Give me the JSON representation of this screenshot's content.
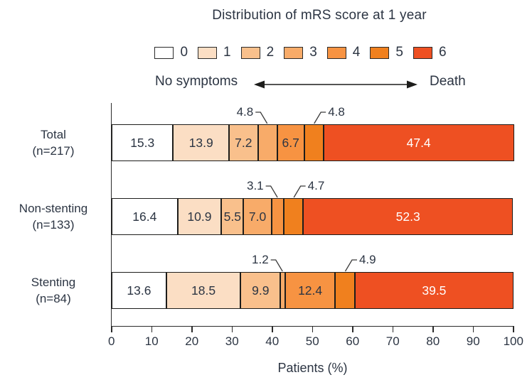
{
  "chart_data": {
    "type": "bar",
    "stacked": true,
    "orientation": "horizontal",
    "title": "Distribution of mRS score at 1 year",
    "xlabel": "Patients (%)",
    "xlim": [
      0,
      100
    ],
    "xticks": [
      0,
      10,
      20,
      30,
      40,
      50,
      60,
      70,
      80,
      90,
      100
    ],
    "grid": false,
    "legend_position": "top",
    "legend": [
      {
        "label": "0",
        "color": "#ffffff"
      },
      {
        "label": "1",
        "color": "#fbdec4"
      },
      {
        "label": "2",
        "color": "#f9c08c"
      },
      {
        "label": "3",
        "color": "#f8ab69"
      },
      {
        "label": "4",
        "color": "#f79342"
      },
      {
        "label": "5",
        "color": "#f0801e"
      },
      {
        "label": "6",
        "color": "#ee5022"
      }
    ],
    "scale_annotation": {
      "left": "No symptoms",
      "right": "Death"
    },
    "categories": [
      "Total (n=217)",
      "Non-stenting (n=133)",
      "Stenting (n=84)"
    ],
    "rows": [
      {
        "label": "Total",
        "sublabel": "(n=217)",
        "values": [
          15.3,
          13.9,
          7.2,
          4.8,
          6.7,
          4.8,
          47.4
        ],
        "value_labels": [
          "15.3",
          "13.9",
          "7.2",
          "4.8",
          "6.7",
          "4.8",
          "47.4"
        ],
        "callouts": [
          {
            "segment": 3,
            "value": "4.8",
            "side": "left"
          },
          {
            "segment": 5,
            "value": "4.8",
            "side": "right"
          }
        ]
      },
      {
        "label": "Non-stenting",
        "sublabel": "(n=133)",
        "values": [
          16.4,
          10.9,
          5.5,
          7.0,
          3.1,
          4.7,
          52.3
        ],
        "value_labels": [
          "16.4",
          "10.9",
          "5.5",
          "7.0",
          "3.1",
          "4.7",
          "52.3"
        ],
        "callouts": [
          {
            "segment": 4,
            "value": "3.1",
            "side": "left"
          },
          {
            "segment": 5,
            "value": "4.7",
            "side": "right"
          }
        ]
      },
      {
        "label": "Stenting",
        "sublabel": "(n=84)",
        "values": [
          13.6,
          18.5,
          9.9,
          1.2,
          12.4,
          4.9,
          39.5
        ],
        "value_labels": [
          "13.6",
          "18.5",
          "9.9",
          "1.2",
          "12.4",
          "4.9",
          "39.5"
        ],
        "callouts": [
          {
            "segment": 3,
            "value": "1.2",
            "side": "left"
          },
          {
            "segment": 5,
            "value": "4.9",
            "side": "right"
          }
        ]
      }
    ],
    "colors": {
      "text": "#2c3543",
      "bar_border": "#1d1d1b",
      "axis": "#2b2b2b",
      "last_segment_text": "#ffffff",
      "leader_line": "#3a3a3a"
    }
  }
}
